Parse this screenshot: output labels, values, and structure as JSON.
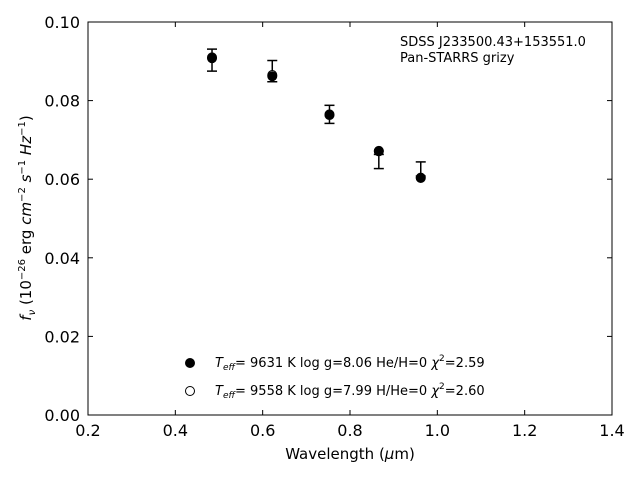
{
  "chart_data": {
    "type": "scatter",
    "annotation_lines": [
      "SDSS J233500.43+153551.0",
      "Pan-STARRS grizy"
    ],
    "xlabel": "Wavelength (μm)",
    "ylabel": "f_ν (10^−26 erg cm^−2 s^−1 Hz^−1)",
    "xlim": [
      0.2,
      1.4
    ],
    "ylim": [
      0.0,
      0.1
    ],
    "xticks": [
      "0.2",
      "0.4",
      "0.6",
      "0.8",
      "1.0",
      "1.2",
      "1.4"
    ],
    "yticks": [
      "0.00",
      "0.02",
      "0.04",
      "0.06",
      "0.08",
      "0.10"
    ],
    "observed": {
      "x": [
        0.484,
        0.622,
        0.753,
        0.866,
        0.962
      ],
      "y": [
        0.0903,
        0.0875,
        0.0765,
        0.0645,
        0.0626
      ],
      "yerr": [
        0.0028,
        0.0027,
        0.0023,
        0.0018,
        0.0018
      ]
    },
    "series": [
      {
        "marker": "filled",
        "legend": {
          "teff": "9631 K",
          "logg": "log g=8.06",
          "comp": "He/H=0",
          "chi": "=2.59"
        },
        "x": [
          0.484,
          0.622,
          0.753,
          0.866,
          0.962
        ],
        "y": [
          0.0908,
          0.0862,
          0.0765,
          0.0671,
          0.0603
        ]
      },
      {
        "marker": "open",
        "legend": {
          "teff": "9558 K",
          "logg": "log g=7.99",
          "comp": "H/He=0",
          "chi": "=2.60"
        },
        "x": [
          0.484,
          0.622,
          0.753,
          0.866,
          0.962
        ],
        "y": [
          0.091,
          0.0865,
          0.0763,
          0.0672,
          0.0604
        ]
      }
    ],
    "grid": false,
    "legend_position": "lower-center"
  }
}
